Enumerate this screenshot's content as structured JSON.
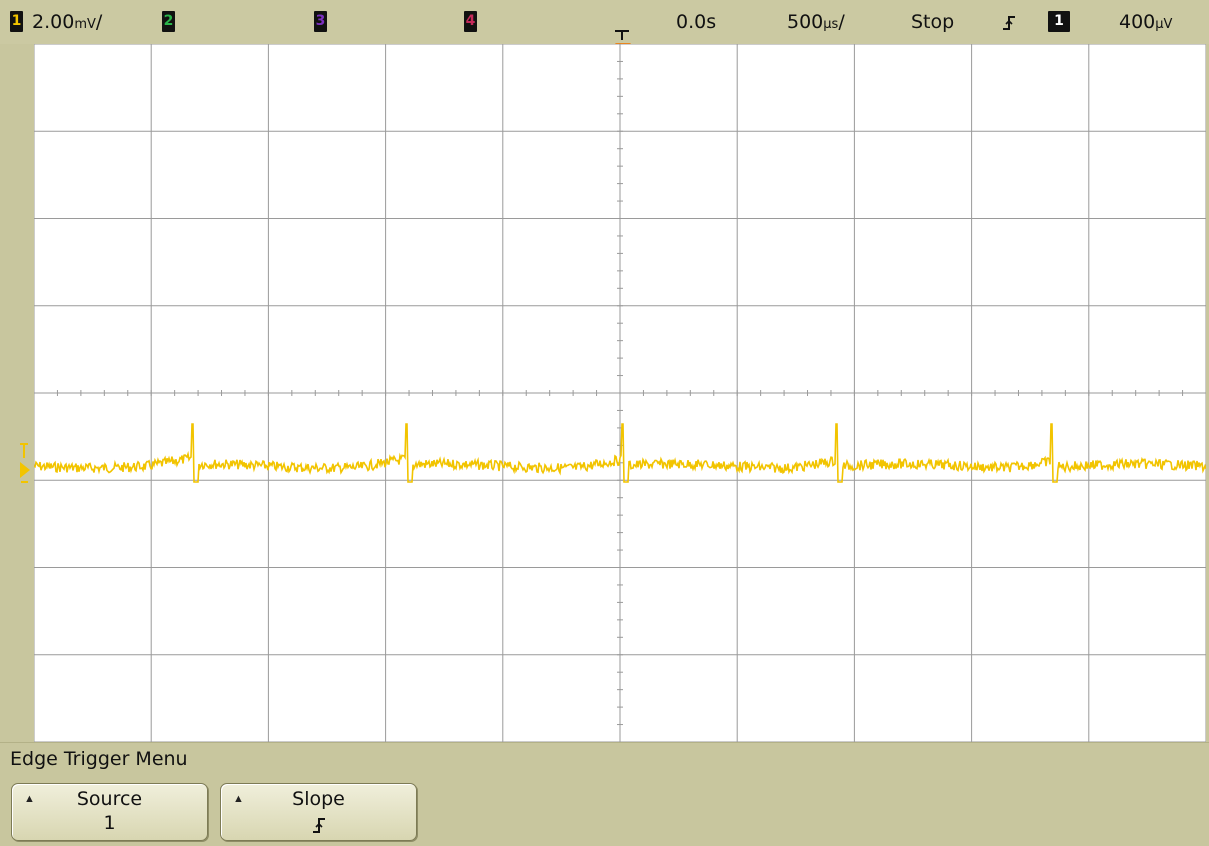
{
  "status": {
    "ch1": {
      "number": "1",
      "scale": "2.00",
      "unit_glyph": "mV",
      "suffix": "/"
    },
    "ch2": {
      "number": "2"
    },
    "ch3": {
      "number": "3"
    },
    "ch4": {
      "number": "4"
    },
    "time_delay": "0.0s",
    "time_scale": "500",
    "time_unit_glyph": "µs",
    "time_suffix": "/",
    "run_state": "Stop",
    "trigger_source": "1",
    "trigger_level": "400",
    "trigger_level_unit_glyph": "µV"
  },
  "colors": {
    "background": "#c8c69e",
    "ch1": "#f2c400",
    "ch2": "#2ab34a",
    "ch3": "#7b2fbf",
    "ch4": "#c42a5a",
    "trace": "#f2c400",
    "grid": "#9a9a9a",
    "trigger_marker": "#e8851f"
  },
  "icons": {
    "trigger_position": "trigger-position-icon",
    "trigger_slope": "rising-edge-icon",
    "softkey_arrow": "up-arrow-icon"
  },
  "menu": {
    "title": "Edge Trigger Menu",
    "softkeys": [
      {
        "label": "Source",
        "value": "1"
      },
      {
        "label": "Slope",
        "value": "ꞙ"
      }
    ]
  }
}
